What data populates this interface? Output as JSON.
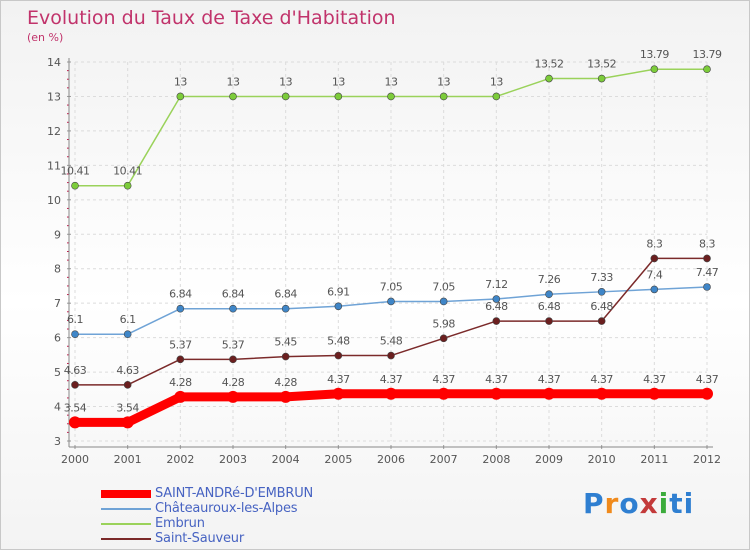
{
  "header": {
    "title": "Evolution du Taux de Taxe d'Habitation",
    "unit": "(en %)"
  },
  "brand": {
    "name": "Proxiti",
    "letters": [
      "P",
      "r",
      "o",
      "x",
      "i",
      "t",
      "i"
    ],
    "letter_colors": [
      "#2f7fd1",
      "#f08a1c",
      "#2f7fd1",
      "#c33a3a",
      "#3bab3b",
      "#2f7fd1",
      "#2f7fd1"
    ]
  },
  "chart_data": {
    "type": "line",
    "x": [
      "2000",
      "2001",
      "2002",
      "2003",
      "2004",
      "2005",
      "2006",
      "2007",
      "2008",
      "2009",
      "2010",
      "2011",
      "2012"
    ],
    "y_ticks": [
      "3",
      "4",
      "5",
      "6",
      "7",
      "8",
      "9",
      "10",
      "11",
      "12",
      "13",
      "14"
    ],
    "ylim": [
      3,
      14
    ],
    "grid": true,
    "legend_position": "bottom-left",
    "series": [
      {
        "name": "SAINT-ANDRé-D'EMBRUN",
        "values": [
          3.54,
          3.54,
          4.28,
          4.28,
          4.28,
          4.37,
          4.37,
          4.37,
          4.37,
          4.37,
          4.37,
          4.37,
          4.37
        ],
        "labels": [
          "3.54",
          "3.54",
          "4.28",
          "4.28",
          "4.28",
          "4.37",
          "4.37",
          "4.37",
          "4.37",
          "4.37",
          "4.37",
          "4.37",
          "4.37"
        ],
        "color": "#ff0000",
        "marker_color": "#ff0000",
        "emphasis": "thick"
      },
      {
        "name": "Châteauroux-les-Alpes",
        "values": [
          6.1,
          6.1,
          6.84,
          6.84,
          6.84,
          6.91,
          7.05,
          7.05,
          7.12,
          7.26,
          7.33,
          7.4,
          7.47
        ],
        "labels": [
          "6.1",
          "6.1",
          "6.84",
          "6.84",
          "6.84",
          "6.91",
          "7.05",
          "7.05",
          "7.12",
          "7.26",
          "7.33",
          "7.4",
          "7.47"
        ],
        "color": "#6fa3d6",
        "marker_color": "#3f86c8",
        "emphasis": "normal"
      },
      {
        "name": "Embrun",
        "values": [
          10.41,
          10.41,
          13,
          13,
          13,
          13,
          13,
          13,
          13,
          13.52,
          13.52,
          13.79,
          13.79
        ],
        "labels": [
          "10.41",
          "10.41",
          "13",
          "13",
          "13",
          "13",
          "13",
          "13",
          "13",
          "13.52",
          "13.52",
          "13.79",
          "13.79"
        ],
        "color": "#9ad25a",
        "marker_color": "#7ccc3a",
        "emphasis": "normal"
      },
      {
        "name": "Saint-Sauveur",
        "values": [
          4.63,
          4.63,
          5.37,
          5.37,
          5.45,
          5.48,
          5.48,
          5.98,
          6.48,
          6.48,
          6.48,
          8.3,
          8.3
        ],
        "labels": [
          "4.63",
          "4.63",
          "5.37",
          "5.37",
          "5.45",
          "5.48",
          "5.48",
          "5.98",
          "6.48",
          "6.48",
          "6.48",
          "8.3",
          "8.3"
        ],
        "color": "#7b2a2a",
        "marker_color": "#6b1f1f",
        "emphasis": "normal"
      }
    ]
  }
}
